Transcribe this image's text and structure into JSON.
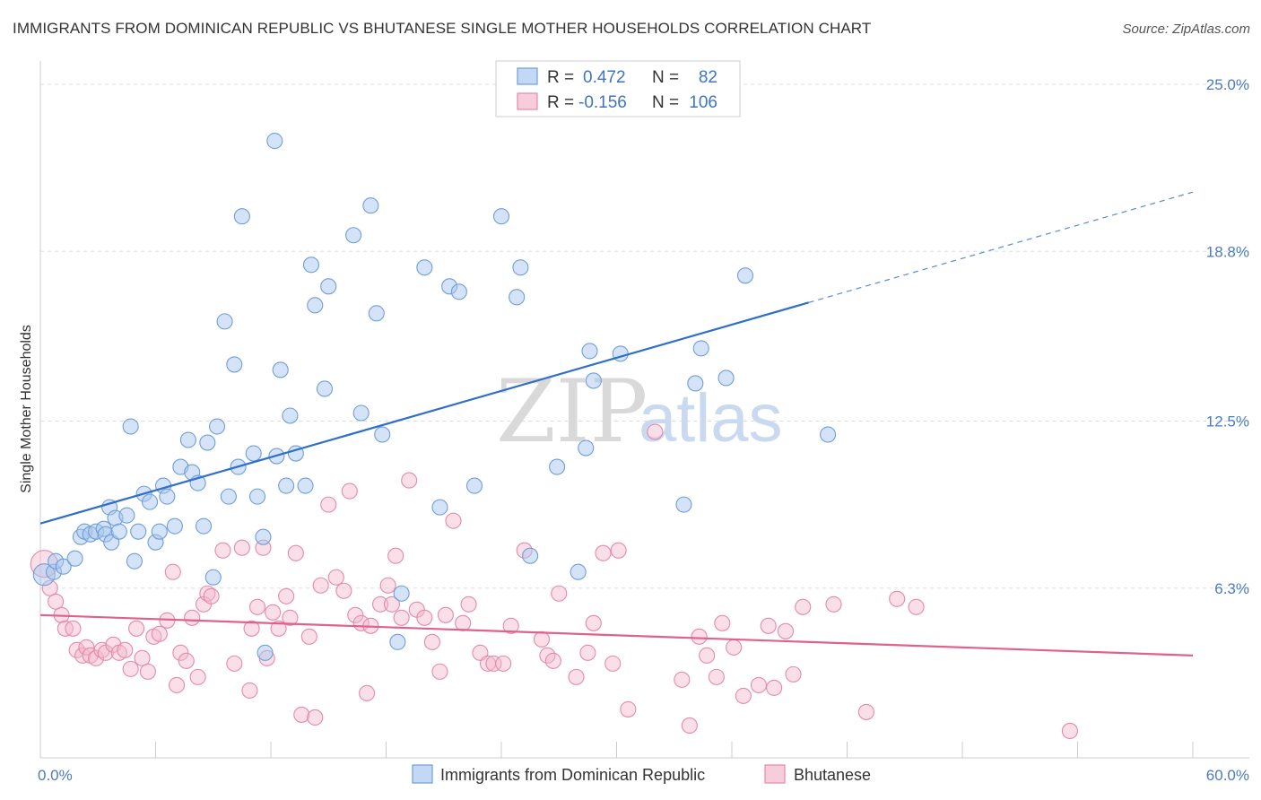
{
  "title": "IMMIGRANTS FROM DOMINICAN REPUBLIC VS BHUTANESE SINGLE MOTHER HOUSEHOLDS CORRELATION CHART",
  "source": "Source: ZipAtlas.com",
  "watermark": {
    "zip": "ZIP",
    "atlas": "atlas"
  },
  "legend": {
    "r_label": "R =",
    "n_label": "N =",
    "rows": [
      {
        "r": "0.472",
        "n": "82",
        "color": "#a9c8ef"
      },
      {
        "r": "-0.156",
        "n": "106",
        "color": "#f5b8cc"
      }
    ]
  },
  "bottom_legend": [
    "Immigrants from Dominican Republic",
    "Bhutanese"
  ],
  "colors": {
    "blue_fill": "#a9c8ef",
    "blue_stroke": "#6f9fd8",
    "blue_line": "#2f6fc9",
    "pink_fill": "#f5b8cc",
    "pink_stroke": "#e58aa8",
    "pink_line": "#e0608f",
    "grid": "#dddddd",
    "axis_text": "#4a7bc4"
  },
  "chart_data": {
    "type": "scatter",
    "title": "IMMIGRANTS FROM DOMINICAN REPUBLIC VS BHUTANESE SINGLE MOTHER HOUSEHOLDS CORRELATION CHART",
    "xlabel": "",
    "ylabel": "Single Mother Households",
    "xlim": [
      0,
      60
    ],
    "ylim": [
      0,
      25.5
    ],
    "x_tick_labels": [
      "0.0%",
      "60.0%"
    ],
    "y_ticks": [
      6.3,
      12.5,
      18.8,
      25.0
    ],
    "y_tick_labels": [
      "6.3%",
      "12.5%",
      "18.8%",
      "25.0%"
    ],
    "grid": true,
    "legend_position": "top-center",
    "series": [
      {
        "name": "Immigrants from Dominican Republic",
        "r": 0.472,
        "n": 82,
        "trend": {
          "x0": 0,
          "y0": 8.7,
          "x1": 40,
          "y1": 16.9,
          "dashed_to_x": 60,
          "dashed_to_y": 21.0
        },
        "points": [
          [
            0.2,
            6.8
          ],
          [
            0.7,
            6.9
          ],
          [
            0.8,
            7.3
          ],
          [
            1.2,
            7.1
          ],
          [
            1.8,
            7.4
          ],
          [
            2.1,
            8.2
          ],
          [
            2.3,
            8.4
          ],
          [
            2.6,
            8.3
          ],
          [
            2.9,
            8.4
          ],
          [
            3.3,
            8.5
          ],
          [
            3.4,
            8.3
          ],
          [
            3.6,
            9.3
          ],
          [
            3.7,
            8.0
          ],
          [
            3.9,
            8.9
          ],
          [
            4.1,
            8.4
          ],
          [
            4.5,
            9.0
          ],
          [
            4.7,
            12.3
          ],
          [
            4.9,
            7.3
          ],
          [
            5.1,
            8.4
          ],
          [
            5.4,
            9.8
          ],
          [
            5.7,
            9.5
          ],
          [
            6.0,
            8.0
          ],
          [
            6.2,
            8.4
          ],
          [
            6.4,
            10.1
          ],
          [
            6.6,
            9.7
          ],
          [
            7.0,
            8.6
          ],
          [
            7.3,
            10.8
          ],
          [
            7.7,
            11.8
          ],
          [
            7.9,
            10.6
          ],
          [
            8.2,
            10.2
          ],
          [
            8.5,
            8.6
          ],
          [
            8.7,
            11.7
          ],
          [
            9.0,
            6.7
          ],
          [
            9.2,
            12.3
          ],
          [
            9.6,
            16.2
          ],
          [
            9.8,
            9.7
          ],
          [
            10.1,
            14.6
          ],
          [
            10.3,
            10.8
          ],
          [
            10.5,
            20.1
          ],
          [
            11.1,
            11.3
          ],
          [
            11.3,
            9.7
          ],
          [
            11.6,
            8.2
          ],
          [
            11.7,
            3.9
          ],
          [
            12.2,
            22.9
          ],
          [
            12.3,
            11.2
          ],
          [
            12.5,
            14.4
          ],
          [
            12.8,
            10.1
          ],
          [
            13.0,
            12.7
          ],
          [
            13.3,
            11.3
          ],
          [
            13.8,
            10.1
          ],
          [
            14.1,
            18.3
          ],
          [
            14.3,
            16.8
          ],
          [
            14.8,
            13.7
          ],
          [
            15.0,
            17.5
          ],
          [
            16.3,
            19.4
          ],
          [
            16.7,
            12.8
          ],
          [
            17.2,
            20.5
          ],
          [
            17.5,
            16.5
          ],
          [
            17.8,
            12.0
          ],
          [
            18.6,
            4.3
          ],
          [
            18.8,
            6.1
          ],
          [
            20.0,
            18.2
          ],
          [
            20.8,
            9.3
          ],
          [
            21.3,
            17.5
          ],
          [
            21.8,
            17.3
          ],
          [
            22.6,
            10.1
          ],
          [
            24.0,
            20.1
          ],
          [
            24.8,
            17.1
          ],
          [
            25.0,
            18.2
          ],
          [
            25.5,
            7.5
          ],
          [
            26.9,
            10.8
          ],
          [
            28.0,
            6.9
          ],
          [
            28.4,
            11.5
          ],
          [
            28.6,
            15.1
          ],
          [
            28.8,
            14.0
          ],
          [
            30.2,
            15.0
          ],
          [
            33.5,
            9.4
          ],
          [
            34.1,
            13.9
          ],
          [
            34.4,
            15.2
          ],
          [
            35.7,
            14.1
          ],
          [
            36.7,
            17.9
          ],
          [
            41.0,
            12.0
          ]
        ]
      },
      {
        "name": "Bhutanese",
        "r": -0.156,
        "n": 106,
        "trend": {
          "x0": 0,
          "y0": 5.3,
          "x1": 60,
          "y1": 3.8
        },
        "points": [
          [
            0.2,
            7.2
          ],
          [
            0.5,
            6.3
          ],
          [
            0.8,
            5.8
          ],
          [
            1.1,
            5.3
          ],
          [
            1.3,
            4.8
          ],
          [
            1.7,
            4.8
          ],
          [
            1.9,
            4.0
          ],
          [
            2.2,
            3.8
          ],
          [
            2.4,
            4.1
          ],
          [
            2.6,
            3.8
          ],
          [
            2.9,
            3.7
          ],
          [
            3.2,
            4.0
          ],
          [
            3.4,
            3.9
          ],
          [
            3.8,
            4.2
          ],
          [
            4.1,
            3.9
          ],
          [
            4.4,
            4.0
          ],
          [
            4.7,
            3.3
          ],
          [
            5.0,
            4.8
          ],
          [
            5.3,
            3.7
          ],
          [
            5.6,
            3.2
          ],
          [
            5.9,
            4.5
          ],
          [
            6.2,
            4.6
          ],
          [
            6.6,
            5.1
          ],
          [
            6.9,
            6.9
          ],
          [
            7.1,
            2.7
          ],
          [
            7.3,
            3.9
          ],
          [
            7.6,
            3.6
          ],
          [
            7.9,
            5.2
          ],
          [
            8.2,
            3.0
          ],
          [
            8.5,
            5.7
          ],
          [
            8.7,
            6.1
          ],
          [
            8.9,
            6.0
          ],
          [
            9.5,
            7.7
          ],
          [
            10.1,
            3.5
          ],
          [
            10.5,
            7.8
          ],
          [
            10.9,
            2.5
          ],
          [
            11.0,
            4.8
          ],
          [
            11.3,
            5.6
          ],
          [
            11.6,
            7.8
          ],
          [
            11.8,
            3.7
          ],
          [
            12.1,
            5.4
          ],
          [
            12.4,
            4.8
          ],
          [
            12.8,
            6.0
          ],
          [
            13.0,
            5.2
          ],
          [
            13.3,
            7.6
          ],
          [
            13.6,
            1.6
          ],
          [
            14.0,
            4.5
          ],
          [
            14.3,
            1.5
          ],
          [
            14.6,
            6.4
          ],
          [
            15.0,
            9.4
          ],
          [
            15.4,
            6.7
          ],
          [
            15.8,
            6.2
          ],
          [
            16.1,
            9.9
          ],
          [
            16.4,
            5.3
          ],
          [
            16.7,
            5.0
          ],
          [
            17.0,
            2.4
          ],
          [
            17.2,
            4.9
          ],
          [
            17.7,
            5.7
          ],
          [
            18.1,
            6.4
          ],
          [
            18.3,
            5.7
          ],
          [
            18.5,
            7.5
          ],
          [
            18.8,
            5.2
          ],
          [
            19.2,
            10.3
          ],
          [
            19.6,
            5.5
          ],
          [
            20.0,
            5.2
          ],
          [
            20.4,
            4.3
          ],
          [
            20.8,
            3.2
          ],
          [
            21.1,
            5.3
          ],
          [
            21.5,
            8.8
          ],
          [
            22.0,
            5.0
          ],
          [
            22.3,
            5.7
          ],
          [
            22.9,
            3.9
          ],
          [
            23.3,
            3.5
          ],
          [
            23.6,
            3.5
          ],
          [
            24.1,
            3.5
          ],
          [
            24.5,
            4.9
          ],
          [
            25.2,
            7.7
          ],
          [
            26.1,
            4.4
          ],
          [
            26.4,
            3.8
          ],
          [
            26.7,
            3.6
          ],
          [
            27.0,
            6.1
          ],
          [
            27.9,
            3.0
          ],
          [
            28.5,
            3.9
          ],
          [
            28.8,
            5.0
          ],
          [
            29.3,
            7.6
          ],
          [
            29.8,
            3.5
          ],
          [
            30.1,
            7.7
          ],
          [
            30.6,
            1.8
          ],
          [
            32.0,
            12.1
          ],
          [
            33.4,
            2.9
          ],
          [
            33.8,
            1.2
          ],
          [
            34.3,
            4.5
          ],
          [
            34.7,
            3.8
          ],
          [
            35.2,
            3.0
          ],
          [
            35.5,
            5.0
          ],
          [
            36.1,
            4.1
          ],
          [
            36.6,
            2.3
          ],
          [
            37.4,
            2.7
          ],
          [
            37.9,
            4.9
          ],
          [
            38.2,
            2.6
          ],
          [
            38.8,
            4.7
          ],
          [
            39.2,
            3.1
          ],
          [
            39.7,
            5.6
          ],
          [
            41.3,
            5.7
          ],
          [
            43.0,
            1.7
          ],
          [
            44.6,
            5.9
          ],
          [
            45.6,
            5.6
          ],
          [
            53.6,
            1.0
          ]
        ]
      }
    ]
  }
}
